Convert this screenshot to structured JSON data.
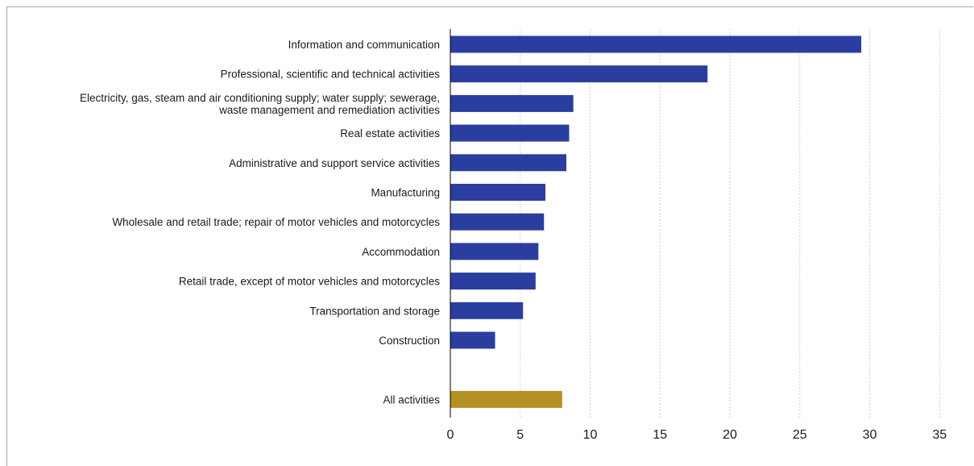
{
  "chart_data": {
    "type": "bar",
    "orientation": "horizontal",
    "title": "",
    "xlabel": "",
    "ylabel": "",
    "xlim": [
      0,
      35
    ],
    "xticks": [
      0,
      5,
      10,
      15,
      20,
      25,
      30,
      35
    ],
    "grid": true,
    "legend": "none",
    "categories": [
      "Information and communication",
      "Professional, scientific and technical activities",
      "Electricity, gas, steam and air conditioning supply; water supply; sewerage, waste management and remediation activities",
      "Real estate activities",
      "Administrative and support service activities",
      "Manufacturing",
      "Wholesale and retail trade; repair of motor vehicles and motorcycles",
      "Accommodation",
      "Retail trade, except of motor vehicles and motorcycles",
      "Transportation and storage",
      "Construction",
      "All activities"
    ],
    "category_label_lines": [
      [
        "Information and communication"
      ],
      [
        "Professional, scientific and technical activities"
      ],
      [
        "Electricity, gas, steam and air conditioning supply; water supply; sewerage,",
        "waste management and remediation activities"
      ],
      [
        "Real estate activities"
      ],
      [
        "Administrative and support service activities"
      ],
      [
        "Manufacturing"
      ],
      [
        "Wholesale and retail trade; repair of motor vehicles and motorcycles"
      ],
      [
        "Accommodation"
      ],
      [
        "Retail trade, except of motor vehicles and motorcycles"
      ],
      [
        "Transportation and storage"
      ],
      [
        "Construction"
      ],
      [
        "All activities"
      ]
    ],
    "values": [
      29.4,
      18.4,
      8.8,
      8.5,
      8.3,
      6.8,
      6.7,
      6.3,
      6.1,
      5.2,
      3.2,
      8.0
    ],
    "bar_colors": [
      "#2a3ea0",
      "#2a3ea0",
      "#2a3ea0",
      "#2a3ea0",
      "#2a3ea0",
      "#2a3ea0",
      "#2a3ea0",
      "#2a3ea0",
      "#2a3ea0",
      "#2a3ea0",
      "#2a3ea0",
      "#b39122"
    ]
  }
}
